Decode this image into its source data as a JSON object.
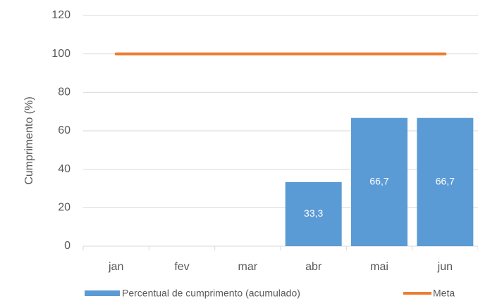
{
  "chart_data": {
    "type": "bar",
    "y_label": "Cumprimento (%)",
    "categories": [
      "jan",
      "fev",
      "mar",
      "abr",
      "mai",
      "jun"
    ],
    "series": [
      {
        "name": "Percentual de cumprimento (acumulado)",
        "type": "bar",
        "color": "#5b9bd5",
        "values": [
          null,
          null,
          null,
          33.3,
          66.7,
          66.7
        ],
        "value_labels": [
          null,
          null,
          null,
          "33,3",
          "66,7",
          "66,7"
        ]
      },
      {
        "name": "Meta",
        "type": "line",
        "color": "#ed7d31",
        "values": [
          100,
          100,
          100,
          100,
          100,
          100
        ]
      }
    ],
    "ylim": [
      0,
      120
    ],
    "yticks": [
      0,
      20,
      40,
      60,
      80,
      100,
      120
    ],
    "grid": true
  }
}
